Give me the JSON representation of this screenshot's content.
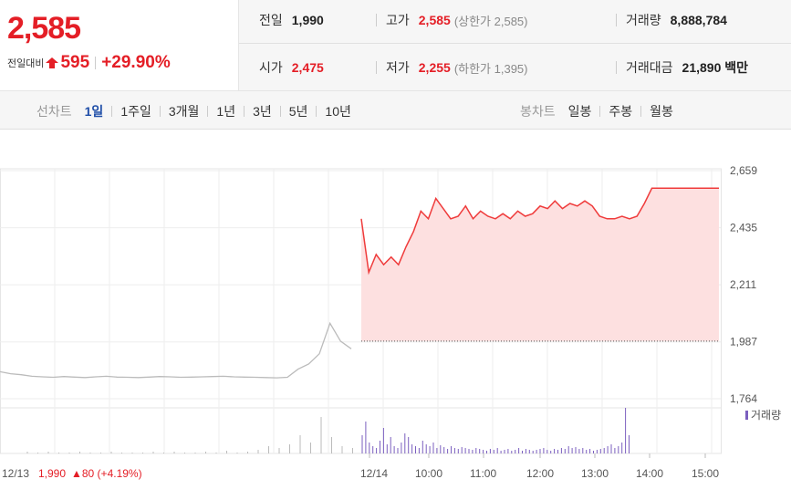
{
  "price": {
    "current": "2,585",
    "change_label": "전일대비",
    "change_amount": "595",
    "change_percent": "+29.90%",
    "direction_icon": "up-arrow-icon",
    "up_color": "#e41e26"
  },
  "stats": {
    "prev_close": {
      "label": "전일",
      "value": "1,990"
    },
    "open": {
      "label": "시가",
      "value": "2,475"
    },
    "high": {
      "label": "고가",
      "value": "2,585",
      "sub": "(상한가 2,585)"
    },
    "low": {
      "label": "저가",
      "value": "2,255",
      "sub": "(하한가 1,395)"
    },
    "volume": {
      "label": "거래량",
      "value": "8,888,784"
    },
    "trade_value": {
      "label": "거래대금",
      "value": "21,890 백만"
    }
  },
  "toolbar": {
    "line_title": "선차트",
    "line_periods": [
      "1일",
      "1주일",
      "3개월",
      "1년",
      "3년",
      "5년",
      "10년"
    ],
    "active_period": "1일",
    "candle_title": "봉차트",
    "candle_periods": [
      "일봉",
      "주봉",
      "월봉"
    ]
  },
  "chart_data": {
    "type": "line",
    "y_ticks": [
      "2,659",
      "2,435",
      "2,211",
      "1,987",
      "1,764"
    ],
    "ylim": [
      1764,
      2659
    ],
    "x_ticks": [
      "12/14",
      "10:00",
      "11:00",
      "12:00",
      "13:00",
      "14:00",
      "15:00"
    ],
    "volume_legend": "거래량",
    "reference_value": 1990,
    "series": [
      {
        "color": "#bbbbbb",
        "values": [
          1870,
          1862,
          1858,
          1852,
          1850,
          1848,
          1851,
          1849,
          1847,
          1850,
          1852,
          1849,
          1848,
          1847,
          1849,
          1851,
          1850,
          1848,
          1849,
          1850,
          1851,
          1852,
          1850,
          1849,
          1848,
          1847,
          1846,
          1848,
          1880,
          1900,
          1940,
          2060,
          1990,
          1960
        ]
      },
      {
        "color": "#ef3b3b",
        "values": [
          2470,
          2260,
          2330,
          2290,
          2320,
          2290,
          2360,
          2420,
          2500,
          2470,
          2550,
          2510,
          2470,
          2480,
          2520,
          2470,
          2500,
          2480,
          2470,
          2490,
          2470,
          2500,
          2480,
          2490,
          2520,
          2510,
          2540,
          2510,
          2530,
          2520,
          2540,
          2520,
          2480,
          2470,
          2470,
          2480,
          2470,
          2480,
          2530,
          2590,
          2590,
          2590,
          2590,
          2590,
          2590,
          2590,
          2590,
          2590,
          2590
        ]
      }
    ],
    "volume_colors": {
      "prev": "#bbbbbb",
      "today": "#7b5fbf"
    }
  },
  "footer": {
    "prev_date": "12/13",
    "prev_close": "1,990",
    "prev_change": "▲80 (+4.19%)"
  }
}
